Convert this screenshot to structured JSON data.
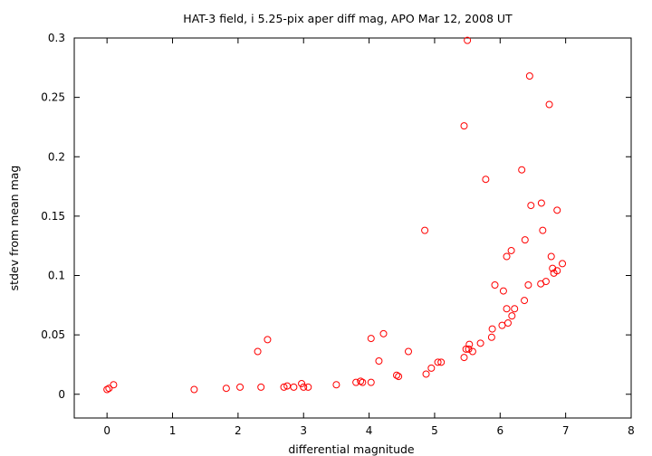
{
  "chart_data": {
    "type": "scatter",
    "title": "HAT-3 field, i 5.25-pix aper diff mag, APO Mar 12, 2008 UT",
    "xlabel": "differential magnitude",
    "ylabel": "stdev from mean mag",
    "xlim": [
      -0.5,
      8
    ],
    "ylim": [
      -0.02,
      0.3
    ],
    "xticks": [
      "0",
      "1",
      "2",
      "3",
      "4",
      "5",
      "6",
      "7",
      "8"
    ],
    "yticks": [
      "0",
      "0.05",
      "0.1",
      "0.15",
      "0.2",
      "0.25",
      "0.3"
    ],
    "grid": false,
    "legend": "none",
    "marker_color": "#ff0000",
    "marker": "open-circle",
    "points": [
      [
        0.0,
        0.004
      ],
      [
        0.03,
        0.005
      ],
      [
        0.1,
        0.008
      ],
      [
        1.33,
        0.004
      ],
      [
        1.82,
        0.005
      ],
      [
        2.03,
        0.006
      ],
      [
        2.3,
        0.036
      ],
      [
        2.35,
        0.006
      ],
      [
        2.45,
        0.046
      ],
      [
        2.7,
        0.006
      ],
      [
        2.75,
        0.007
      ],
      [
        2.85,
        0.006
      ],
      [
        2.97,
        0.009
      ],
      [
        3.0,
        0.006
      ],
      [
        3.07,
        0.006
      ],
      [
        3.5,
        0.008
      ],
      [
        3.8,
        0.01
      ],
      [
        3.87,
        0.011
      ],
      [
        3.9,
        0.01
      ],
      [
        4.03,
        0.01
      ],
      [
        4.03,
        0.047
      ],
      [
        4.15,
        0.028
      ],
      [
        4.22,
        0.051
      ],
      [
        4.42,
        0.016
      ],
      [
        4.45,
        0.015
      ],
      [
        4.6,
        0.036
      ],
      [
        4.85,
        0.138
      ],
      [
        4.87,
        0.017
      ],
      [
        4.95,
        0.022
      ],
      [
        5.05,
        0.027
      ],
      [
        5.1,
        0.027
      ],
      [
        5.45,
        0.031
      ],
      [
        5.45,
        0.226
      ],
      [
        5.48,
        0.038
      ],
      [
        5.5,
        0.298
      ],
      [
        5.52,
        0.038
      ],
      [
        5.53,
        0.042
      ],
      [
        5.58,
        0.036
      ],
      [
        5.7,
        0.043
      ],
      [
        5.78,
        0.181
      ],
      [
        5.87,
        0.048
      ],
      [
        5.88,
        0.055
      ],
      [
        5.92,
        0.092
      ],
      [
        6.03,
        0.058
      ],
      [
        6.05,
        0.087
      ],
      [
        6.1,
        0.116
      ],
      [
        6.1,
        0.072
      ],
      [
        6.12,
        0.06
      ],
      [
        6.17,
        0.121
      ],
      [
        6.18,
        0.066
      ],
      [
        6.22,
        0.072
      ],
      [
        6.33,
        0.189
      ],
      [
        6.37,
        0.079
      ],
      [
        6.38,
        0.13
      ],
      [
        6.43,
        0.092
      ],
      [
        6.45,
        0.268
      ],
      [
        6.47,
        0.159
      ],
      [
        6.62,
        0.093
      ],
      [
        6.63,
        0.161
      ],
      [
        6.65,
        0.138
      ],
      [
        6.7,
        0.095
      ],
      [
        6.75,
        0.244
      ],
      [
        6.78,
        0.116
      ],
      [
        6.8,
        0.106
      ],
      [
        6.82,
        0.102
      ],
      [
        6.87,
        0.104
      ],
      [
        6.87,
        0.155
      ],
      [
        6.95,
        0.11
      ]
    ]
  }
}
